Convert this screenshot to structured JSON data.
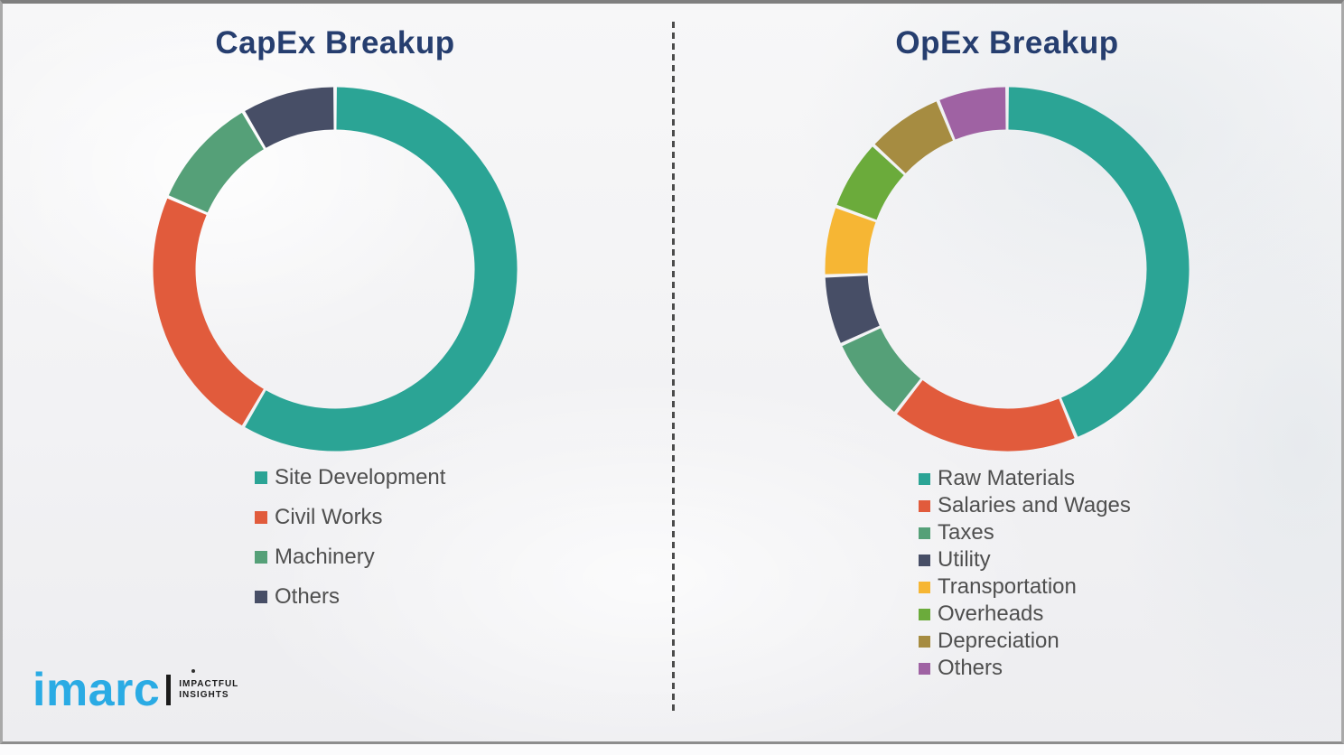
{
  "page": {
    "background_color": "#f2f2f4",
    "frame_border_color": "#8d8d8d",
    "divider_color": "#4b4b4b",
    "title_color": "#263e6f",
    "legend_text_color": "#4f4f4f"
  },
  "chart_data": [
    {
      "id": "capex",
      "type": "pie",
      "donut": true,
      "title": "CapEx Breakup",
      "labels": [
        "Site Development",
        "Civil Works",
        "Machinery",
        "Others"
      ],
      "values": [
        58.4,
        23.1,
        10.1,
        8.4
      ],
      "colors": [
        "#2ba495",
        "#e15b3c",
        "#55a078",
        "#474e66"
      ],
      "legend_position": "bottom-left",
      "values_unit": "percent (estimated from arc angles; no data labels shown)"
    },
    {
      "id": "opex",
      "type": "pie",
      "donut": true,
      "title": "OpEx Breakup",
      "labels": [
        "Raw Materials",
        "Salaries and Wages",
        "Taxes",
        "Utility",
        "Transportation",
        "Overheads",
        "Depreciation",
        "Others"
      ],
      "values": [
        43.8,
        16.7,
        7.7,
        6.2,
        6.2,
        6.3,
        6.9,
        6.2
      ],
      "colors": [
        "#2ba495",
        "#e15b3c",
        "#55a078",
        "#474e66",
        "#f6b634",
        "#6bab3b",
        "#a68c41",
        "#9f62a3"
      ],
      "legend_position": "bottom-left",
      "values_unit": "percent (estimated from arc angles; no data labels shown)"
    }
  ],
  "logo": {
    "wordmark": "imarc",
    "tagline_line1": "IMPACTFUL",
    "tagline_line2": "INSIGHTS",
    "wordmark_color": "#2aabe4",
    "tagline_color": "#1b1b1b"
  }
}
